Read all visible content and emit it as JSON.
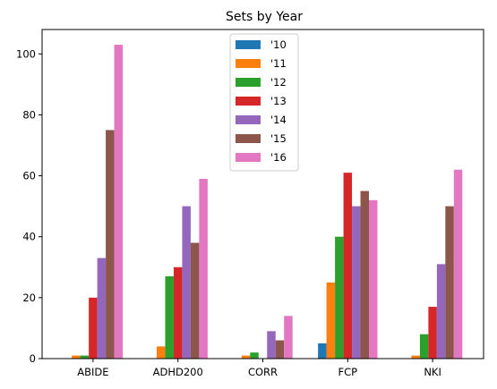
{
  "chart_data": {
    "type": "bar",
    "title": "Sets by Year",
    "xlabel": "",
    "ylabel": "",
    "categories": [
      "ABIDE",
      "ADHD200",
      "CORR",
      "FCP",
      "NKI"
    ],
    "ylim": [
      0,
      108
    ],
    "yticks": [
      0,
      20,
      40,
      60,
      80,
      100
    ],
    "grid": false,
    "legend_position": "top-center",
    "series": [
      {
        "name": "'10",
        "color": "#1f77b4",
        "values": [
          0,
          0,
          0,
          5,
          0
        ]
      },
      {
        "name": "'11",
        "color": "#ff7f0e",
        "values": [
          1,
          4,
          1,
          25,
          1
        ]
      },
      {
        "name": "'12",
        "color": "#2ca02c",
        "values": [
          1,
          27,
          2,
          40,
          8
        ]
      },
      {
        "name": "'13",
        "color": "#d62728",
        "values": [
          20,
          30,
          0,
          61,
          17
        ]
      },
      {
        "name": "'14",
        "color": "#9467bd",
        "values": [
          33,
          50,
          9,
          50,
          31
        ]
      },
      {
        "name": "'15",
        "color": "#8c564b",
        "values": [
          75,
          38,
          6,
          55,
          50
        ]
      },
      {
        "name": "'16",
        "color": "#e377c2",
        "values": [
          103,
          59,
          14,
          52,
          62
        ]
      }
    ]
  }
}
